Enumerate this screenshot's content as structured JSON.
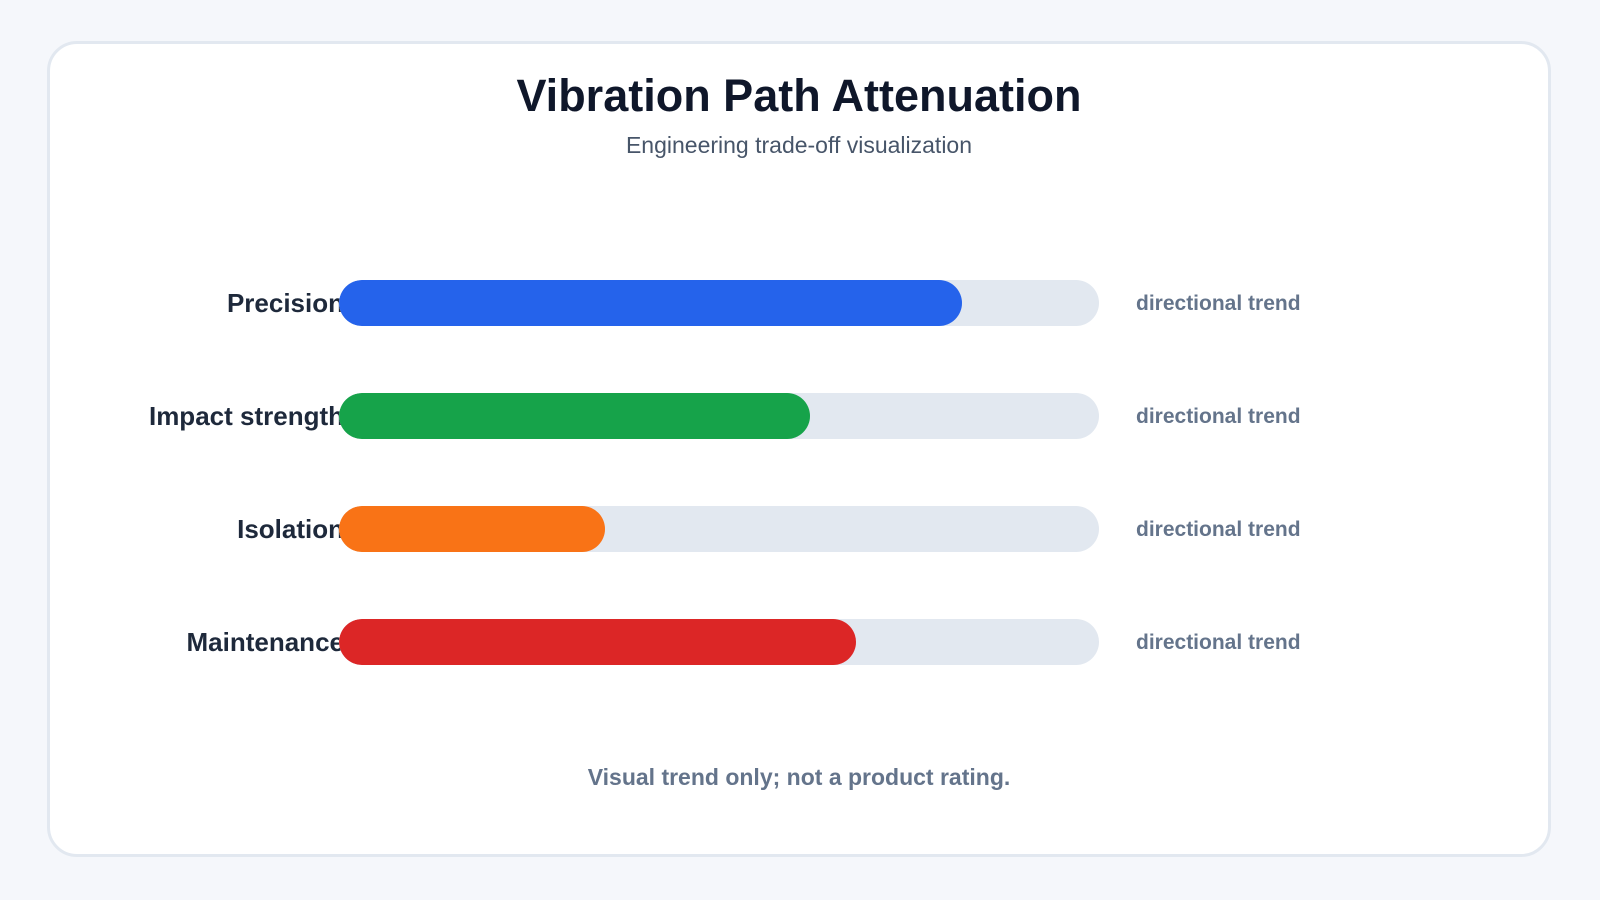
{
  "chart_data": {
    "type": "bar",
    "orientation": "horizontal",
    "title": "Vibration Path Attenuation",
    "subtitle": "Engineering trade-off visualization",
    "categories": [
      "Precision",
      "Impact strength",
      "Isolation",
      "Maintenance"
    ],
    "values": [
      82,
      62,
      35,
      68
    ],
    "value_labels": [
      "directional trend",
      "directional trend",
      "directional trend",
      "directional trend"
    ],
    "colors": [
      "#2563eb",
      "#16a34a",
      "#f97316",
      "#dc2626"
    ],
    "xlim": [
      0,
      100
    ],
    "track_color": "#e2e8f0",
    "grid": false,
    "footnote": "Visual trend only; not a product rating."
  }
}
